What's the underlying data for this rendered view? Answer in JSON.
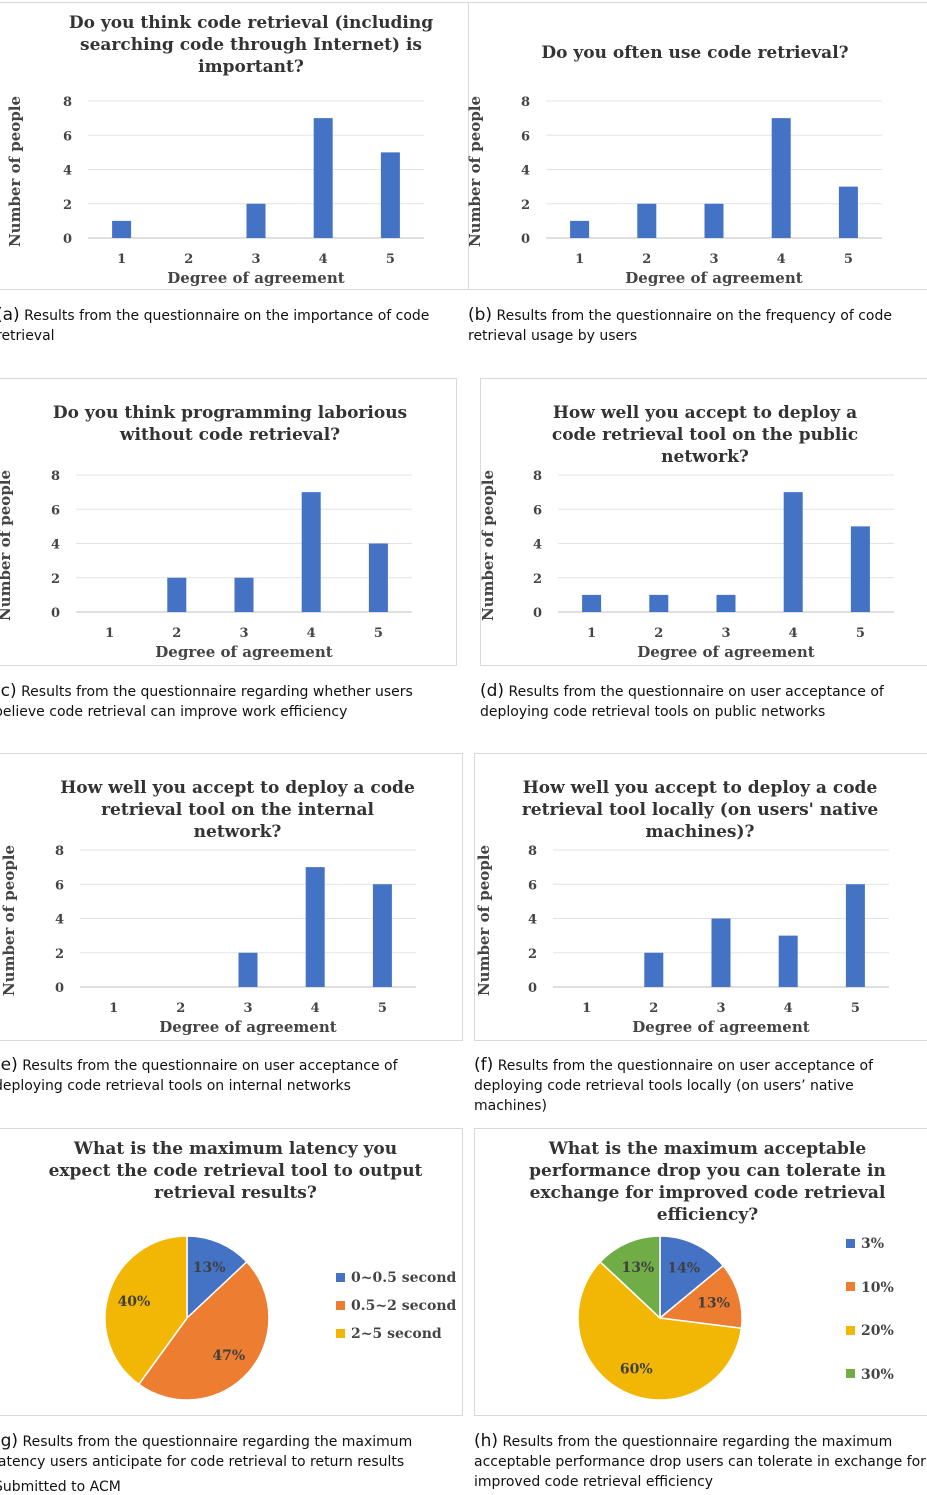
{
  "colors": {
    "bar": "#4472C4",
    "pie": [
      "#4472C4",
      "#ED7D31",
      "#F2B705",
      "#70AD47"
    ]
  },
  "panels": [
    {
      "title": "Do you think code retrieval (including searching code through Internet) is important?",
      "label": "(a)",
      "caption": "Results from the questionnaire on the importance of code retrieval"
    },
    {
      "title": "Do you often use code retrieval?",
      "label": "(b)",
      "caption": "Results from the questionnaire on the frequency of code retrieval usage by users"
    },
    {
      "title": "Do you think programming laborious without code retrieval?",
      "label": "(c)",
      "caption": "Results from the questionnaire regarding whether users believe code retrieval can improve work efficiency"
    },
    {
      "title": "How well you accept to deploy a code retrieval tool on the public network?",
      "label": "(d)",
      "caption": "Results from the questionnaire on user acceptance of deploying code retrieval tools on public networks"
    },
    {
      "title": "How well you accept to deploy a code retrieval tool on the internal network?",
      "label": "(e)",
      "caption": "Results from the questionnaire on user acceptance of deploying code retrieval tools on internal networks"
    },
    {
      "title": "How well you accept to deploy a code retrieval tool locally (on users' native machines)?",
      "label": "(f)",
      "caption": "Results from the questionnaire on user acceptance of deploying code retrieval tools locally (on users’ native machines)"
    },
    {
      "title": "What is the maximum latency you expect the code retrieval tool to output retrieval results?",
      "label": "(g)",
      "caption": "Results from the questionnaire regarding the maximum latency users anticipate for code retrieval to return results"
    },
    {
      "title": "What is the maximum acceptable performance drop you can tolerate in exchange for improved code retrieval efficiency?",
      "label": "(h)",
      "caption": "Results from the questionnaire regarding the maximum acceptable performance drop users can tolerate in exchange for improved code retrieval efficiency"
    }
  ],
  "footer": "Submitted to ACM",
  "chart_data": [
    {
      "type": "bar",
      "title": "Do you think code retrieval (including searching code through Internet) is important?",
      "categories": [
        "1",
        "2",
        "3",
        "4",
        "5"
      ],
      "values": [
        1,
        0,
        2,
        7,
        5
      ],
      "xlabel": "Degree of agreement",
      "ylabel": "Number of people",
      "ylim": [
        0,
        8
      ],
      "yticks": [
        "0",
        "2",
        "4",
        "6",
        "8"
      ],
      "grid": true
    },
    {
      "type": "bar",
      "title": "Do you often use code retrieval?",
      "categories": [
        "1",
        "2",
        "3",
        "4",
        "5"
      ],
      "values": [
        1,
        2,
        2,
        7,
        3
      ],
      "xlabel": "Degree of agreement",
      "ylabel": "Number of people",
      "ylim": [
        0,
        8
      ],
      "yticks": [
        "0",
        "2",
        "4",
        "6",
        "8"
      ],
      "grid": true
    },
    {
      "type": "bar",
      "title": "Do you think programming laborious without code retrieval?",
      "categories": [
        "1",
        "2",
        "3",
        "4",
        "5"
      ],
      "values": [
        0,
        2,
        2,
        7,
        4
      ],
      "xlabel": "Degree of agreement",
      "ylabel": "Number of people",
      "ylim": [
        0,
        8
      ],
      "yticks": [
        "0",
        "2",
        "4",
        "6",
        "8"
      ],
      "grid": true
    },
    {
      "type": "bar",
      "title": "How well you accept to deploy a code retrieval tool on the public network?",
      "categories": [
        "1",
        "2",
        "3",
        "4",
        "5"
      ],
      "values": [
        1,
        1,
        1,
        7,
        5
      ],
      "xlabel": "Degree of agreement",
      "ylabel": "Number of people",
      "ylim": [
        0,
        8
      ],
      "yticks": [
        "0",
        "2",
        "4",
        "6",
        "8"
      ],
      "grid": true
    },
    {
      "type": "bar",
      "title": "How well you accept to deploy a code retrieval tool on the internal network?",
      "categories": [
        "1",
        "2",
        "3",
        "4",
        "5"
      ],
      "values": [
        0,
        0,
        2,
        7,
        6
      ],
      "xlabel": "Degree of agreement",
      "ylabel": "Number of people",
      "ylim": [
        0,
        8
      ],
      "yticks": [
        "0",
        "2",
        "4",
        "6",
        "8"
      ],
      "grid": true
    },
    {
      "type": "bar",
      "title": "How well you accept to deploy a code retrieval tool locally (on users' native machines)?",
      "categories": [
        "1",
        "2",
        "3",
        "4",
        "5"
      ],
      "values": [
        0,
        2,
        4,
        3,
        6
      ],
      "xlabel": "Degree of agreement",
      "ylabel": "Number of people",
      "ylim": [
        0,
        8
      ],
      "yticks": [
        "0",
        "2",
        "4",
        "6",
        "8"
      ],
      "grid": true
    },
    {
      "type": "pie",
      "title": "What is the maximum latency you expect the code retrieval tool to output retrieval results?",
      "labels": [
        "0~0.5 second",
        "0.5~2 second",
        "2~5 second"
      ],
      "values": [
        13,
        47,
        40
      ],
      "data_labels": [
        "13%",
        "47%",
        "40%"
      ],
      "legend": "right"
    },
    {
      "type": "pie",
      "title": "What is the maximum acceptable performance drop you can tolerate in exchange for improved code retrieval efficiency?",
      "labels": [
        "3%",
        "10%",
        "20%",
        "30%"
      ],
      "values": [
        14,
        13,
        60,
        13
      ],
      "data_labels": [
        "14%",
        "13%",
        "60%",
        "13%"
      ],
      "legend": "right"
    }
  ]
}
